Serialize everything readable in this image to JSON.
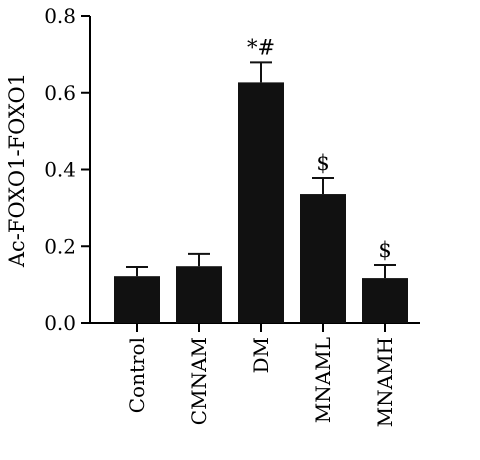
{
  "chart_data": {
    "type": "bar",
    "categories": [
      "Control",
      "CMNAM",
      "DM",
      "MNAML",
      "MNAMH"
    ],
    "values": [
      0.122,
      0.148,
      0.627,
      0.336,
      0.117
    ],
    "error": [
      0.024,
      0.032,
      0.052,
      0.042,
      0.034
    ],
    "significance": [
      "",
      "",
      "*#",
      "$",
      "$"
    ],
    "ylabel": "Ac-FOXO1-FOXO1",
    "xlabel": "",
    "ylim": [
      0,
      0.8
    ],
    "yticks": [
      0.0,
      0.2,
      0.4,
      0.6,
      0.8
    ],
    "ytick_labels": [
      "0.0",
      "0.2",
      "0.4",
      "0.6",
      "0.8"
    ],
    "grid": false,
    "legend": "none",
    "bar_color": "#111111",
    "axis_color": "#000000"
  }
}
